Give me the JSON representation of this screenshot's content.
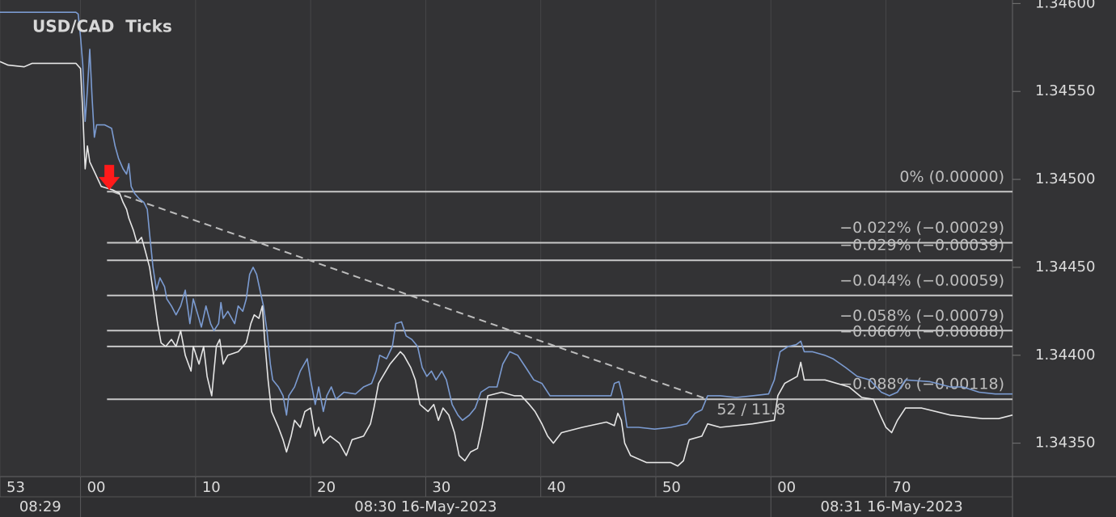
{
  "chart_data": {
    "type": "line",
    "title": "USD/CAD  Ticks",
    "xlim": [
      -7,
      81
    ],
    "ylim": [
      1.34331,
      1.34602
    ],
    "xticks": [
      {
        "value": -7,
        "label": "53"
      },
      {
        "value": 0,
        "label": "00"
      },
      10,
      20,
      30,
      40,
      50,
      {
        "value": 60,
        "label": "00"
      },
      70
    ],
    "yticks": [
      {
        "value": 1.346,
        "label": "1.34600"
      },
      {
        "value": 1.3455,
        "label": "1.34550"
      },
      {
        "value": 1.345,
        "label": "1.34500"
      },
      {
        "value": 1.3445,
        "label": "1.34450"
      },
      {
        "value": 1.344,
        "label": "1.34400"
      },
      {
        "value": 1.3435,
        "label": "1.34350"
      }
    ],
    "minute_labels": [
      {
        "value": -60,
        "label": "08:29"
      },
      {
        "value": 0,
        "label": "08:30 16-May-2023"
      },
      {
        "value": 60,
        "label": "08:31 16-May-2023"
      }
    ],
    "grid": true,
    "series": [
      {
        "color": "#7b9bd1",
        "x": [
          -7.0,
          -0.4,
          -0.2,
          0.0,
          0.2,
          0.4,
          0.6,
          0.8,
          1.0,
          1.2,
          1.4,
          2.1,
          2.7,
          3.0,
          3.3,
          3.7,
          4.0,
          4.2,
          4.4,
          4.7,
          5.1,
          5.5,
          5.8,
          6.0,
          6.3,
          6.6,
          6.9,
          7.3,
          7.5,
          7.9,
          8.3,
          8.7,
          9.1,
          9.5,
          9.8,
          10.2,
          10.5,
          10.9,
          11.3,
          11.6,
          12.0,
          12.2,
          12.4,
          12.8,
          13.4,
          13.7,
          14.1,
          14.4,
          14.7,
          15.0,
          15.3,
          15.6,
          15.9,
          16.2,
          16.5,
          16.7,
          17.2,
          17.6,
          17.9,
          18.1,
          18.6,
          19.1,
          19.7,
          20.0,
          20.4,
          20.7,
          21.1,
          21.4,
          21.8,
          22.2,
          22.9,
          23.9,
          24.6,
          25.3,
          25.7,
          26.0,
          26.6,
          27.1,
          27.4,
          27.9,
          28.3,
          28.8,
          29.3,
          29.7,
          30.1,
          30.5,
          30.9,
          31.4,
          31.8,
          32.3,
          32.8,
          33.2,
          33.8,
          34.3,
          34.8,
          35.5,
          36.2,
          36.7,
          37.3,
          38.0,
          38.7,
          39.4,
          40.1,
          40.8,
          42.2,
          43.6,
          46.1,
          46.4,
          46.8,
          47.1,
          47.5,
          48.5,
          49.9,
          51.3,
          52.7,
          53.4,
          54.0,
          54.5,
          55.6,
          57.0,
          58.4,
          59.8,
          60.3,
          60.8,
          61.5,
          62.2,
          62.6,
          62.9,
          63.6,
          64.7,
          65.4,
          66.5,
          67.5,
          68.6,
          69.6,
          70.3,
          71.0,
          71.7,
          73.8,
          75.6,
          76.7,
          78.1,
          79.5,
          81.0
        ],
        "values": [
          1.34595,
          1.34595,
          1.34594,
          1.34581,
          1.34565,
          1.34533,
          1.34551,
          1.34574,
          1.34547,
          1.34524,
          1.34531,
          1.34531,
          1.34529,
          1.34519,
          1.34512,
          1.34506,
          1.34503,
          1.34509,
          1.34496,
          1.34492,
          1.34489,
          1.34487,
          1.34483,
          1.34469,
          1.3445,
          1.34437,
          1.34444,
          1.34439,
          1.34432,
          1.34428,
          1.34423,
          1.34428,
          1.34437,
          1.34418,
          1.34432,
          1.34423,
          1.34416,
          1.34428,
          1.34418,
          1.34414,
          1.34418,
          1.3443,
          1.34421,
          1.34425,
          1.34418,
          1.34428,
          1.34425,
          1.34432,
          1.34446,
          1.3445,
          1.34446,
          1.34437,
          1.34428,
          1.34414,
          1.34395,
          1.34386,
          1.34382,
          1.34377,
          1.34366,
          1.34377,
          1.34382,
          1.34391,
          1.34398,
          1.34386,
          1.34372,
          1.34382,
          1.34368,
          1.34377,
          1.34382,
          1.34375,
          1.34379,
          1.34378,
          1.34382,
          1.34384,
          1.34391,
          1.344,
          1.34398,
          1.34405,
          1.34418,
          1.34419,
          1.34411,
          1.34409,
          1.34405,
          1.34393,
          1.34388,
          1.34391,
          1.34386,
          1.34391,
          1.34386,
          1.34372,
          1.34366,
          1.34363,
          1.34366,
          1.3437,
          1.34379,
          1.34382,
          1.34382,
          1.34395,
          1.34402,
          1.344,
          1.34393,
          1.34386,
          1.34384,
          1.34377,
          1.34377,
          1.34377,
          1.34377,
          1.34384,
          1.34385,
          1.34377,
          1.34359,
          1.34359,
          1.34358,
          1.34359,
          1.34361,
          1.34367,
          1.34369,
          1.34377,
          1.34377,
          1.34376,
          1.34377,
          1.34378,
          1.34386,
          1.34402,
          1.34405,
          1.34406,
          1.34408,
          1.34402,
          1.34402,
          1.344,
          1.34398,
          1.34393,
          1.34388,
          1.34386,
          1.34379,
          1.34377,
          1.34379,
          1.34386,
          1.34385,
          1.34382,
          1.34382,
          1.34379,
          1.34378,
          1.34378
        ]
      },
      {
        "color": "#e6e6e6",
        "x": [
          -7.0,
          -6.3,
          -4.9,
          -4.2,
          -0.4,
          0.0,
          0.2,
          0.4,
          0.6,
          0.8,
          1.3,
          1.8,
          2.8,
          3.4,
          3.7,
          4.0,
          4.2,
          4.6,
          4.9,
          5.3,
          5.6,
          6.0,
          6.3,
          6.7,
          7.0,
          7.4,
          7.9,
          8.3,
          8.7,
          9.1,
          9.6,
          9.8,
          10.3,
          10.7,
          11.0,
          11.4,
          11.8,
          12.1,
          12.4,
          12.8,
          13.7,
          14.4,
          14.8,
          15.1,
          15.5,
          15.8,
          16.0,
          16.3,
          16.6,
          17.2,
          17.6,
          17.9,
          18.3,
          18.6,
          19.1,
          19.5,
          20.0,
          20.4,
          20.7,
          21.1,
          21.7,
          22.5,
          23.1,
          23.6,
          24.6,
          25.2,
          25.5,
          25.9,
          26.9,
          27.8,
          28.1,
          28.7,
          29.1,
          29.5,
          30.2,
          30.7,
          31.1,
          31.5,
          32.0,
          32.5,
          32.9,
          33.4,
          33.9,
          34.5,
          34.9,
          35.4,
          36.6,
          37.7,
          38.3,
          39.0,
          39.5,
          40.1,
          40.6,
          41.1,
          41.8,
          43.6,
          45.7,
          46.4,
          46.7,
          47.0,
          47.3,
          47.8,
          49.2,
          51.3,
          51.9,
          52.4,
          52.9,
          54.0,
          54.5,
          55.6,
          58.4,
          60.3,
          60.6,
          61.2,
          62.3,
          62.6,
          62.9,
          64.7,
          66.8,
          67.9,
          68.9,
          69.5,
          70.0,
          70.5,
          71.0,
          71.7,
          73.1,
          75.6,
          78.4,
          79.8,
          81.0
        ],
        "values": [
          1.34567,
          1.34565,
          1.34564,
          1.34566,
          1.34566,
          1.34563,
          1.34538,
          1.34506,
          1.34519,
          1.3451,
          1.34503,
          1.34496,
          1.34494,
          1.34492,
          1.34487,
          1.34483,
          1.34478,
          1.34471,
          1.34464,
          1.34467,
          1.3446,
          1.3445,
          1.34437,
          1.34418,
          1.34407,
          1.34405,
          1.34409,
          1.34405,
          1.34414,
          1.344,
          1.34391,
          1.34405,
          1.34395,
          1.34405,
          1.34388,
          1.34377,
          1.34405,
          1.34409,
          1.34395,
          1.344,
          1.34402,
          1.34407,
          1.34418,
          1.34423,
          1.34421,
          1.34428,
          1.34409,
          1.34386,
          1.34368,
          1.34359,
          1.34352,
          1.34345,
          1.34354,
          1.34363,
          1.34359,
          1.34368,
          1.3437,
          1.34354,
          1.34359,
          1.3435,
          1.34354,
          1.3435,
          1.34343,
          1.34352,
          1.34354,
          1.34361,
          1.3437,
          1.34384,
          1.34395,
          1.34402,
          1.344,
          1.34393,
          1.34386,
          1.34372,
          1.34368,
          1.34372,
          1.34363,
          1.3437,
          1.34366,
          1.34356,
          1.34343,
          1.3434,
          1.34345,
          1.34347,
          1.34359,
          1.34377,
          1.34379,
          1.34377,
          1.34377,
          1.34372,
          1.34368,
          1.34361,
          1.34354,
          1.3435,
          1.34356,
          1.34359,
          1.34362,
          1.3436,
          1.34367,
          1.34363,
          1.3435,
          1.34343,
          1.34339,
          1.34339,
          1.34337,
          1.3434,
          1.34352,
          1.34354,
          1.34361,
          1.34359,
          1.34361,
          1.34363,
          1.34377,
          1.34384,
          1.34388,
          1.34396,
          1.34386,
          1.34386,
          1.34382,
          1.34376,
          1.34375,
          1.34366,
          1.34359,
          1.34356,
          1.34363,
          1.3437,
          1.3437,
          1.34366,
          1.34364,
          1.34364,
          1.34366
        ]
      }
    ],
    "fib_start": 2.3,
    "fib_color": "#c8c8c8",
    "fib_levels": [
      {
        "value": 1.34493,
        "label": "0% (0.00000)"
      },
      {
        "value": 1.34464,
        "label": "−0.022% (−0.00029)"
      },
      {
        "value": 1.34454,
        "label": "−0.029% (−0.00039)"
      },
      {
        "value": 1.34434,
        "label": "−0.044% (−0.00059)"
      },
      {
        "value": 1.34414,
        "label": "−0.058% (−0.00079)"
      },
      {
        "value": 1.34405,
        "label": "−0.066% (−0.00088)"
      },
      {
        "value": 1.34375,
        "label": "−0.088% (−0.00118)"
      }
    ],
    "trend_line": {
      "x": [
        2.8,
        54.5
      ],
      "values": [
        1.34493,
        1.34375
      ],
      "color": "#bdbdbd"
    },
    "annotation": {
      "text": "52 / 11.8",
      "x": 55.3,
      "y": 1.34369
    },
    "marker": {
      "x": 2.5,
      "y": 1.34494,
      "color": "#ff1a1a"
    }
  }
}
